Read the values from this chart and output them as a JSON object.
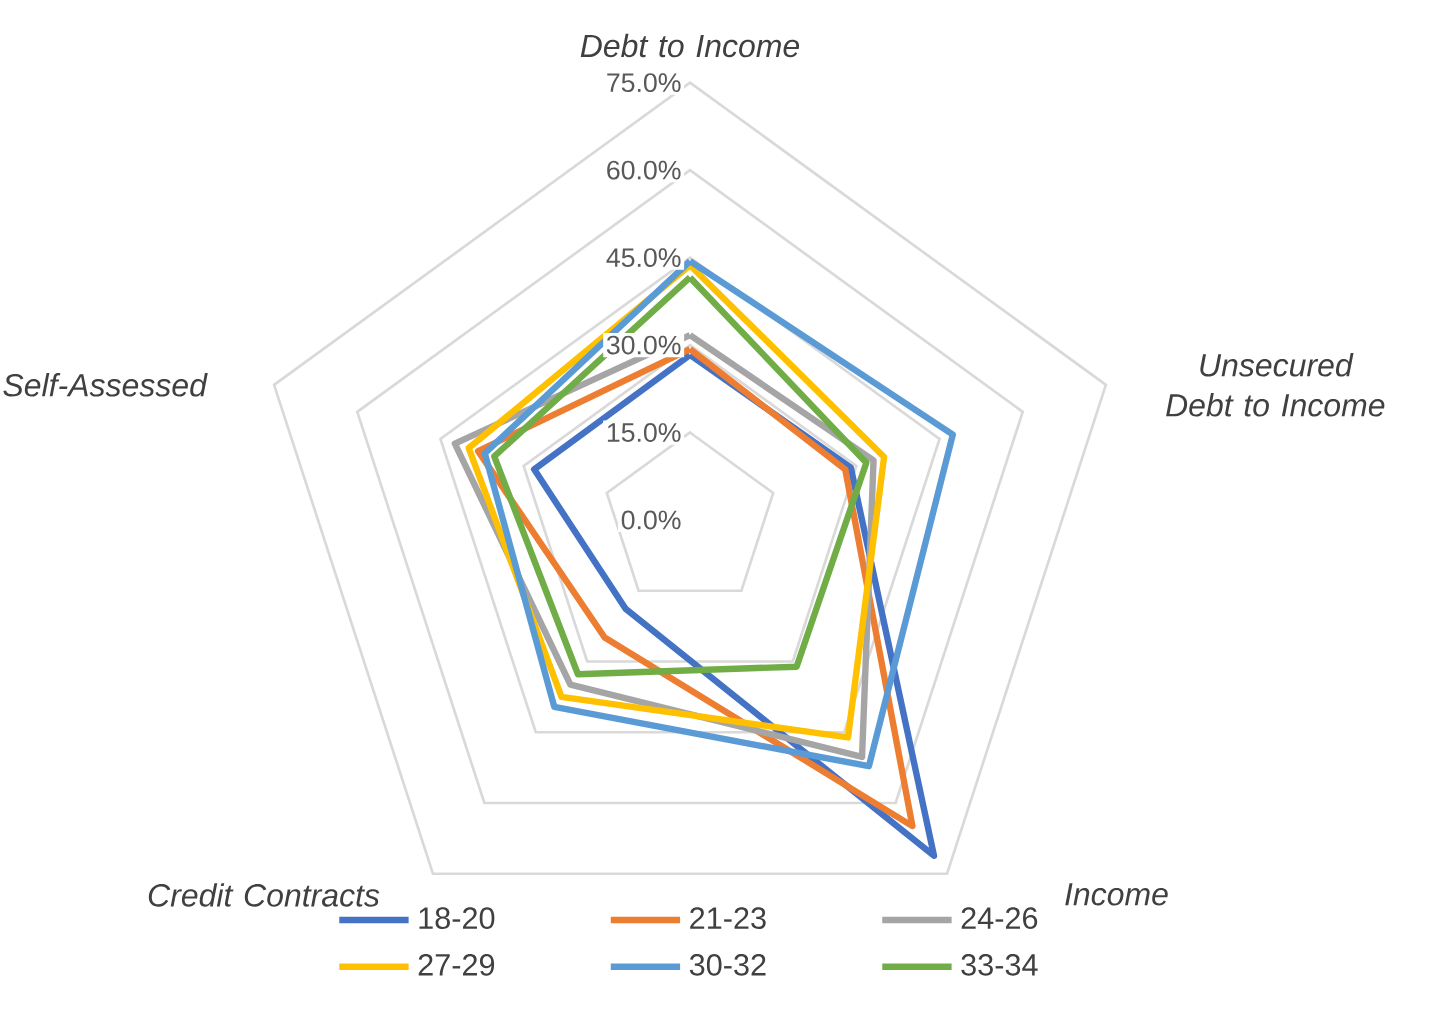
{
  "chart_data": {
    "type": "radar",
    "categories": [
      "Debt to Income",
      "Unsecured Debt to Income",
      "Income",
      "Credit Contracts",
      "Self-Assessed"
    ],
    "series": [
      {
        "name": "18-20",
        "color": "#4472c4",
        "values": [
          28.3,
          29,
          71.2,
          18.8,
          28.1
        ]
      },
      {
        "name": "21-23",
        "color": "#ed7d31",
        "values": [
          29.3,
          28,
          64.9,
          24.9,
          38.2
        ]
      },
      {
        "name": "24-26",
        "color": "#a5a5a5",
        "values": [
          31.7,
          33.1,
          50.2,
          34.9,
          42.4
        ]
      },
      {
        "name": "27-29",
        "color": "#ffc000",
        "values": [
          43.7,
          35,
          46.1,
          37.5,
          39.9
        ]
      },
      {
        "name": "30-32",
        "color": "#5b9bd5",
        "values": [
          44.4,
          47.4,
          52.2,
          39.6,
          37
        ]
      },
      {
        "name": "33-34",
        "color": "#70ad47",
        "values": [
          41.6,
          31.8,
          31.1,
          32.7,
          35.3
        ]
      }
    ],
    "ylim": [
      0,
      75
    ],
    "yticks": [
      {
        "value": 0,
        "label": "0.0%"
      },
      {
        "value": 15,
        "label": "15.0%"
      },
      {
        "value": 30,
        "label": "30.0%"
      },
      {
        "value": 45,
        "label": "45.0%"
      },
      {
        "value": 60,
        "label": "60.0%"
      },
      {
        "value": 75,
        "label": "75.0%"
      }
    ],
    "grid": true,
    "legend": "bottom",
    "line_style": "solid"
  }
}
